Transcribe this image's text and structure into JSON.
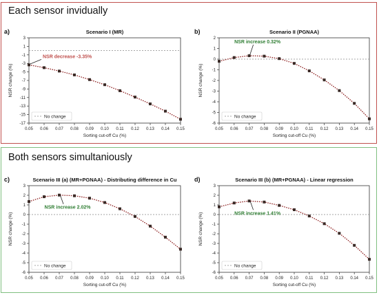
{
  "sections": [
    {
      "title": "Each sensor invidually"
    },
    {
      "title": "Both sensors simultaniously"
    }
  ],
  "colors": {
    "series_line": "#8b1a1a",
    "marker": "#3a2a26",
    "decrease_text": "#c0504d",
    "increase_text": "#2e7d32",
    "baseline": "#888888",
    "section1_border": "#c0504d",
    "section2_border": "#7fbf7f"
  },
  "chart_data": [
    {
      "type": "line",
      "panel_letter": "a)",
      "title": "Scenario I (MR)",
      "xlabel": "Sorting cut-off Cu (%)",
      "ylabel": "NSR change (%)",
      "xlim": [
        0.05,
        0.15
      ],
      "ylim": [
        -17,
        3
      ],
      "xticks": [
        0.05,
        0.06,
        0.07,
        0.08,
        0.09,
        0.1,
        0.11,
        0.12,
        0.13,
        0.14,
        0.15
      ],
      "xtick_labels": [
        "0.05",
        "0.06",
        "0.07",
        "0.08",
        "0.09",
        "0.10",
        "0.11",
        "0.12",
        "0.13",
        "0.14",
        "0.15"
      ],
      "yticks": [
        3,
        1,
        -1,
        -3,
        -5,
        -7,
        -9,
        -11,
        -13,
        -15,
        -17
      ],
      "ytick_labels": [
        "3",
        "1",
        "-1",
        "-3",
        "-5",
        "-7",
        "-9",
        "-11",
        "-13",
        "-15",
        "-17"
      ],
      "x": [
        0.05,
        0.06,
        0.07,
        0.08,
        0.09,
        0.1,
        0.11,
        0.12,
        0.13,
        0.14,
        0.15
      ],
      "y": [
        -3.35,
        -4.0,
        -4.8,
        -5.7,
        -6.8,
        -8.0,
        -9.4,
        -10.9,
        -12.5,
        -14.2,
        -16.1
      ],
      "baseline": 0,
      "legend": "No change",
      "legend_position": "bottom-left",
      "annotation": {
        "text": "NSR decrease -3.35%",
        "x": 0.05,
        "y": -3.35,
        "kind": "decrease"
      }
    },
    {
      "type": "line",
      "panel_letter": "b)",
      "title": "Scenario II (PGNAA)",
      "xlabel": "Sorting cut-off Cu (%)",
      "ylabel": "NSR change (%)",
      "xlim": [
        0.05,
        0.15
      ],
      "ylim": [
        -6,
        2
      ],
      "xticks": [
        0.05,
        0.06,
        0.07,
        0.08,
        0.09,
        0.1,
        0.11,
        0.12,
        0.13,
        0.14,
        0.15
      ],
      "xtick_labels": [
        "0.05",
        "0.06",
        "0.07",
        "0.08",
        "0.09",
        "0.10",
        "0.11",
        "0.12",
        "0.13",
        "0.14",
        "0.15"
      ],
      "yticks": [
        2,
        1,
        0,
        -1,
        -2,
        -3,
        -4,
        -5,
        -6
      ],
      "ytick_labels": [
        "2",
        "1",
        "0",
        "-1",
        "-2",
        "-3",
        "-4",
        "-5",
        "-6"
      ],
      "x": [
        0.05,
        0.06,
        0.07,
        0.08,
        0.09,
        0.1,
        0.11,
        0.12,
        0.13,
        0.14,
        0.15
      ],
      "y": [
        -0.2,
        0.15,
        0.32,
        0.28,
        0.05,
        -0.4,
        -1.1,
        -1.95,
        -2.95,
        -4.15,
        -5.6
      ],
      "baseline": 0,
      "legend": "No change",
      "legend_position": "bottom-left",
      "annotation": {
        "text": "NSR increase 0.32%",
        "x": 0.07,
        "y": 0.32,
        "kind": "increase"
      }
    },
    {
      "type": "line",
      "panel_letter": "c)",
      "title": "Scenario III (a) (MR+PGNAA) - Distributing difference in Cu",
      "xlabel": "Sorting cut-off Cu (%)",
      "ylabel": "NSR change (%)",
      "xlim": [
        0.05,
        0.15
      ],
      "ylim": [
        -6,
        3
      ],
      "xticks": [
        0.05,
        0.06,
        0.07,
        0.08,
        0.09,
        0.1,
        0.11,
        0.12,
        0.13,
        0.14,
        0.15
      ],
      "xtick_labels": [
        "0.05",
        "0.06",
        "0.07",
        "0.08",
        "0.09",
        "0.10",
        "0.11",
        "0.12",
        "0.13",
        "0.14",
        "0.15"
      ],
      "yticks": [
        3,
        2,
        1,
        0,
        -1,
        -2,
        -3,
        -4,
        -5,
        -6
      ],
      "ytick_labels": [
        "3",
        "2",
        "1",
        "0",
        "-1",
        "-2",
        "-3",
        "-4",
        "-5",
        "-6"
      ],
      "x": [
        0.05,
        0.06,
        0.07,
        0.08,
        0.09,
        0.1,
        0.11,
        0.12,
        0.13,
        0.14,
        0.15
      ],
      "y": [
        1.35,
        1.85,
        2.02,
        1.95,
        1.7,
        1.25,
        0.6,
        -0.2,
        -1.2,
        -2.35,
        -3.6
      ],
      "baseline": 0,
      "legend": "No change",
      "legend_position": "bottom-left",
      "annotation": {
        "text": "NSR increase 2.02%",
        "x": 0.07,
        "y": 2.02,
        "kind": "increase"
      }
    },
    {
      "type": "line",
      "panel_letter": "d)",
      "title": "Scenario III (b) (MR+PGNAA) - Linear regression",
      "xlabel": "Sorting cut-off Cu (%)",
      "ylabel": "NSR change (%)",
      "xlim": [
        0.05,
        0.15
      ],
      "ylim": [
        -6,
        3
      ],
      "xticks": [
        0.05,
        0.06,
        0.07,
        0.08,
        0.09,
        0.1,
        0.11,
        0.12,
        0.13,
        0.14,
        0.15
      ],
      "xtick_labels": [
        "0.05",
        "0.06",
        "0.07",
        "0.08",
        "0.09",
        "0.10",
        "0.11",
        "0.12",
        "0.13",
        "0.14",
        "0.15"
      ],
      "yticks": [
        3,
        2,
        1,
        0,
        -1,
        -2,
        -3,
        -4,
        -5,
        -6
      ],
      "ytick_labels": [
        "3",
        "2",
        "1",
        "0",
        "-1",
        "-2",
        "-3",
        "-4",
        "-5",
        "-6"
      ],
      "x": [
        0.05,
        0.06,
        0.07,
        0.08,
        0.09,
        0.1,
        0.11,
        0.12,
        0.13,
        0.14,
        0.15
      ],
      "y": [
        0.8,
        1.2,
        1.41,
        1.3,
        0.95,
        0.5,
        -0.15,
        -0.95,
        -1.95,
        -3.2,
        -4.65
      ],
      "baseline": 0,
      "legend": "No change",
      "legend_position": "bottom-left",
      "annotation": {
        "text": "NSR increase 1.41%",
        "x": 0.07,
        "y": 1.41,
        "kind": "increase"
      }
    }
  ]
}
